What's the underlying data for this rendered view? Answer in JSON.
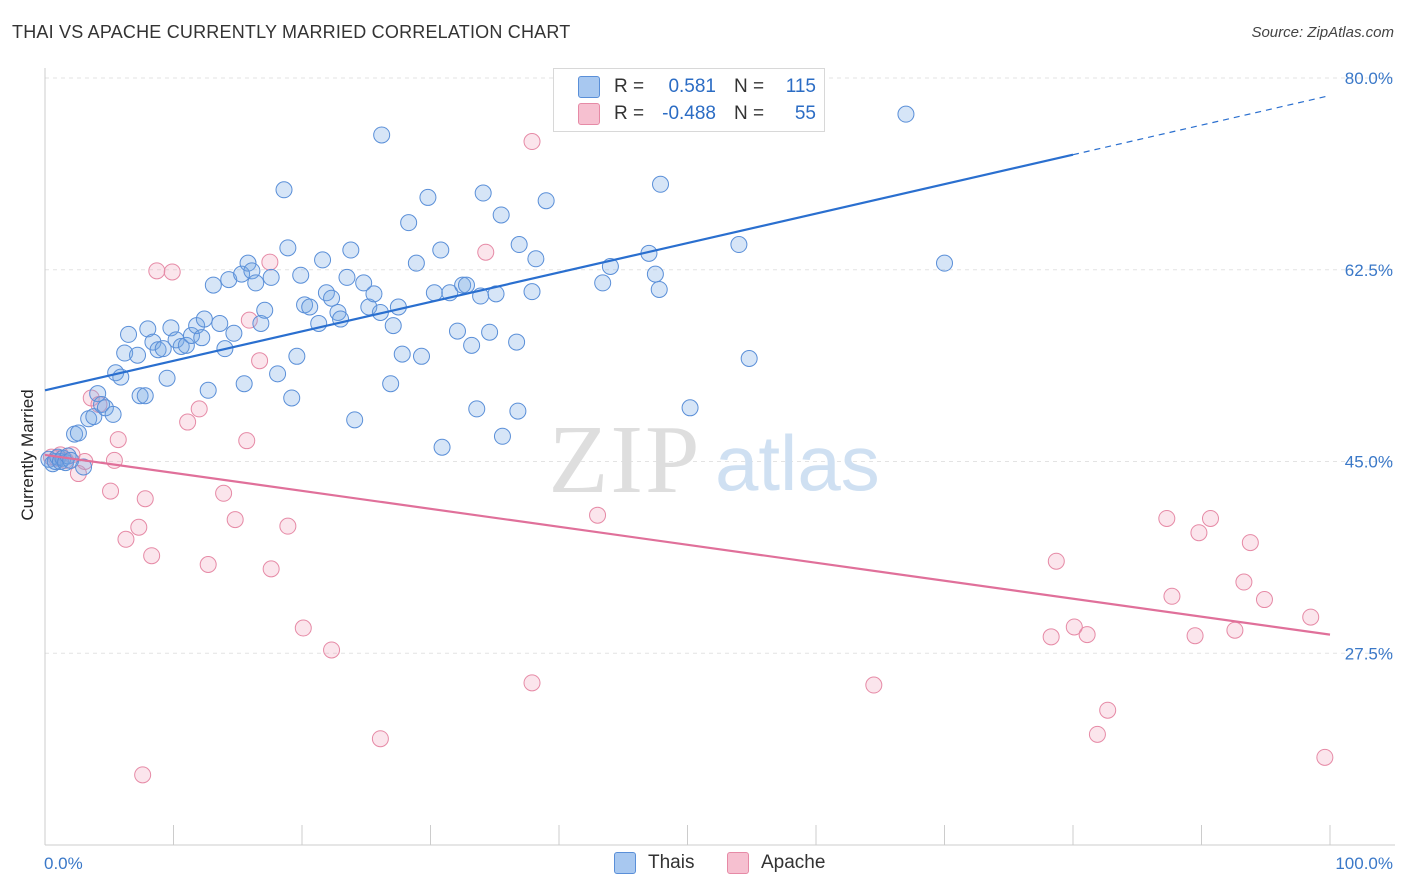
{
  "header": {
    "title": "THAI VS APACHE CURRENTLY MARRIED CORRELATION CHART",
    "source": "Source: ZipAtlas.com"
  },
  "watermark": {
    "zip": "ZIP",
    "atlas": "atlas"
  },
  "legend": {
    "rows": [
      {
        "r_label": "R =",
        "r_value": "0.581",
        "n_label": "N =",
        "n_value": "115",
        "color": "#a8c8f0",
        "border": "#5a8fd8"
      },
      {
        "r_label": "R =",
        "r_value": "-0.488",
        "n_label": "N =",
        "n_value": "55",
        "color": "#f6c0d0",
        "border": "#e68aa6"
      }
    ]
  },
  "bottom_legend": [
    {
      "label": "Thais",
      "color": "#a8c8f0",
      "border": "#5a8fd8"
    },
    {
      "label": "Apache",
      "color": "#f6c0d0",
      "border": "#e68aa6"
    }
  ],
  "colors": {
    "thai_fill": "rgba(120,170,230,0.30)",
    "thai_stroke": "#5a8fd8",
    "thai_line": "#2a6fcf",
    "apache_fill": "rgba(240,150,180,0.25)",
    "apache_stroke": "#e68aa6",
    "apache_line": "#e0709a",
    "tick_label": "#3a78c8",
    "grid": "#e3e3e3"
  },
  "chart_data": {
    "type": "scatter",
    "title": "THAI VS APACHE CURRENTLY MARRIED CORRELATION CHART",
    "xlabel": "",
    "ylabel": "Currently Married",
    "xlim": [
      0,
      100
    ],
    "ylim": [
      10,
      80
    ],
    "x_tick_labels": [
      "0.0%",
      "100.0%"
    ],
    "y_ticks": [
      27.5,
      45.0,
      62.5,
      80.0
    ],
    "y_tick_labels": [
      "27.5%",
      "45.0%",
      "62.5%",
      "80.0%"
    ],
    "grid": "horizontal dashed",
    "series": [
      {
        "name": "Thais",
        "trend": {
          "x": [
            0,
            80
          ],
          "y": [
            51.5,
            73.0
          ],
          "dashed_to": [
            100,
            78.4
          ]
        },
        "points": [
          [
            0.3,
            45.2
          ],
          [
            0.6,
            44.8
          ],
          [
            0.8,
            45.0
          ],
          [
            1.0,
            45.4
          ],
          [
            1.2,
            45.0
          ],
          [
            1.4,
            45.3
          ],
          [
            1.6,
            44.9
          ],
          [
            1.8,
            45.5
          ],
          [
            2.0,
            45.1
          ],
          [
            2.3,
            47.5
          ],
          [
            2.6,
            47.6
          ],
          [
            3.0,
            44.5
          ],
          [
            3.4,
            48.9
          ],
          [
            3.8,
            49.1
          ],
          [
            4.1,
            51.2
          ],
          [
            4.4,
            50.2
          ],
          [
            4.7,
            49.9
          ],
          [
            5.3,
            49.3
          ],
          [
            5.5,
            53.1
          ],
          [
            5.9,
            52.7
          ],
          [
            6.2,
            54.9
          ],
          [
            6.5,
            56.6
          ],
          [
            7.2,
            54.7
          ],
          [
            7.4,
            51.0
          ],
          [
            7.8,
            51.0
          ],
          [
            8.0,
            57.1
          ],
          [
            8.4,
            55.9
          ],
          [
            8.8,
            55.2
          ],
          [
            9.2,
            55.3
          ],
          [
            9.5,
            52.6
          ],
          [
            9.8,
            57.2
          ],
          [
            10.2,
            56.1
          ],
          [
            10.6,
            55.5
          ],
          [
            11.0,
            55.6
          ],
          [
            11.4,
            56.5
          ],
          [
            11.8,
            57.4
          ],
          [
            12.2,
            56.3
          ],
          [
            12.4,
            58.0
          ],
          [
            12.7,
            51.5
          ],
          [
            13.1,
            61.1
          ],
          [
            13.6,
            57.6
          ],
          [
            14.0,
            55.3
          ],
          [
            14.3,
            61.6
          ],
          [
            14.7,
            56.7
          ],
          [
            15.3,
            62.1
          ],
          [
            15.5,
            52.1
          ],
          [
            15.8,
            63.1
          ],
          [
            16.1,
            62.4
          ],
          [
            16.4,
            61.3
          ],
          [
            16.8,
            57.6
          ],
          [
            17.1,
            58.8
          ],
          [
            17.6,
            61.8
          ],
          [
            18.1,
            53.0
          ],
          [
            18.6,
            69.8
          ],
          [
            18.9,
            64.5
          ],
          [
            19.2,
            50.8
          ],
          [
            19.6,
            54.6
          ],
          [
            19.9,
            62.0
          ],
          [
            20.2,
            59.3
          ],
          [
            20.6,
            59.1
          ],
          [
            21.3,
            57.6
          ],
          [
            21.6,
            63.4
          ],
          [
            21.9,
            60.4
          ],
          [
            22.3,
            59.9
          ],
          [
            22.8,
            58.6
          ],
          [
            23.0,
            58.0
          ],
          [
            23.5,
            61.8
          ],
          [
            23.8,
            64.3
          ],
          [
            24.1,
            48.8
          ],
          [
            24.8,
            61.3
          ],
          [
            25.2,
            59.1
          ],
          [
            25.6,
            60.3
          ],
          [
            26.1,
            58.6
          ],
          [
            26.2,
            74.8
          ],
          [
            26.9,
            52.1
          ],
          [
            27.1,
            57.4
          ],
          [
            27.5,
            59.1
          ],
          [
            27.8,
            54.8
          ],
          [
            28.3,
            66.8
          ],
          [
            28.9,
            63.1
          ],
          [
            29.3,
            54.6
          ],
          [
            29.8,
            69.1
          ],
          [
            30.3,
            60.4
          ],
          [
            30.8,
            64.3
          ],
          [
            30.9,
            46.3
          ],
          [
            31.5,
            60.4
          ],
          [
            32.1,
            56.9
          ],
          [
            32.5,
            61.1
          ],
          [
            32.8,
            61.1
          ],
          [
            33.2,
            55.6
          ],
          [
            33.6,
            49.8
          ],
          [
            33.9,
            60.1
          ],
          [
            34.1,
            69.5
          ],
          [
            34.6,
            56.8
          ],
          [
            35.1,
            60.3
          ],
          [
            35.5,
            67.5
          ],
          [
            35.6,
            47.3
          ],
          [
            36.7,
            55.9
          ],
          [
            36.8,
            49.6
          ],
          [
            36.9,
            64.8
          ],
          [
            37.9,
            60.5
          ],
          [
            38.2,
            63.5
          ],
          [
            39.0,
            68.8
          ],
          [
            43.4,
            61.3
          ],
          [
            44.0,
            62.8
          ],
          [
            47.0,
            64.0
          ],
          [
            47.5,
            62.1
          ],
          [
            47.6,
            76.1
          ],
          [
            47.8,
            60.7
          ],
          [
            47.9,
            70.3
          ],
          [
            50.2,
            49.9
          ],
          [
            54.0,
            64.8
          ],
          [
            54.8,
            54.4
          ],
          [
            67.0,
            76.7
          ],
          [
            70.0,
            63.1
          ]
        ]
      },
      {
        "name": "Apache",
        "trend": {
          "x": [
            0,
            100
          ],
          "y": [
            45.6,
            29.2
          ]
        },
        "points": [
          [
            0.5,
            45.4
          ],
          [
            0.9,
            45.3
          ],
          [
            1.2,
            45.6
          ],
          [
            1.6,
            45.1
          ],
          [
            2.1,
            45.6
          ],
          [
            2.6,
            43.9
          ],
          [
            3.1,
            45.0
          ],
          [
            3.6,
            50.8
          ],
          [
            4.2,
            50.2
          ],
          [
            5.1,
            42.3
          ],
          [
            5.4,
            45.1
          ],
          [
            5.7,
            47.0
          ],
          [
            6.3,
            37.9
          ],
          [
            7.3,
            39.0
          ],
          [
            7.6,
            16.4
          ],
          [
            7.8,
            41.6
          ],
          [
            8.3,
            36.4
          ],
          [
            8.7,
            62.4
          ],
          [
            9.9,
            62.3
          ],
          [
            11.1,
            48.6
          ],
          [
            12.0,
            49.8
          ],
          [
            12.7,
            35.6
          ],
          [
            13.9,
            42.1
          ],
          [
            14.8,
            39.7
          ],
          [
            15.7,
            46.9
          ],
          [
            15.9,
            57.9
          ],
          [
            16.7,
            54.2
          ],
          [
            17.5,
            63.2
          ],
          [
            17.6,
            35.2
          ],
          [
            18.9,
            39.1
          ],
          [
            20.1,
            29.8
          ],
          [
            22.3,
            27.8
          ],
          [
            26.1,
            19.7
          ],
          [
            34.3,
            64.1
          ],
          [
            37.9,
            24.8
          ],
          [
            37.9,
            74.2
          ],
          [
            43.0,
            40.1
          ],
          [
            64.5,
            24.6
          ],
          [
            78.3,
            29.0
          ],
          [
            78.7,
            35.9
          ],
          [
            80.1,
            29.9
          ],
          [
            81.1,
            29.2
          ],
          [
            81.9,
            20.1
          ],
          [
            82.7,
            22.3
          ],
          [
            87.3,
            39.8
          ],
          [
            87.7,
            32.7
          ],
          [
            89.5,
            29.1
          ],
          [
            89.8,
            38.5
          ],
          [
            90.7,
            39.8
          ],
          [
            92.6,
            29.6
          ],
          [
            93.3,
            34.0
          ],
          [
            93.8,
            37.6
          ],
          [
            94.9,
            32.4
          ],
          [
            98.5,
            30.8
          ],
          [
            99.6,
            18.0
          ]
        ]
      }
    ]
  }
}
